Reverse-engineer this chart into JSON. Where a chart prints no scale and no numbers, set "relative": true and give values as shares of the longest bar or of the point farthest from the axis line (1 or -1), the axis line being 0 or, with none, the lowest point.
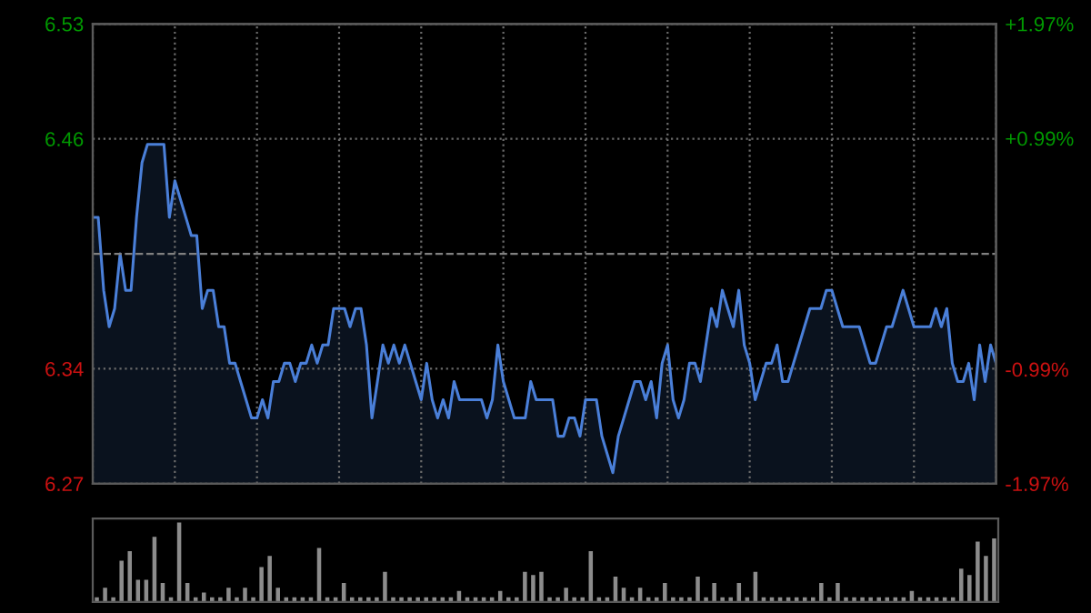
{
  "chart_data": [
    {
      "type": "area",
      "categories": [
        null,
        null,
        null,
        null,
        null,
        null,
        null,
        null,
        null,
        null,
        null,
        null,
        null,
        null,
        null,
        null,
        null,
        null,
        null,
        null,
        null,
        null,
        null,
        null,
        null,
        null,
        null,
        null,
        null,
        null,
        null,
        null,
        null,
        null,
        null,
        null,
        null,
        null,
        null,
        null,
        null,
        null,
        null,
        null,
        null,
        null,
        null,
        null,
        null,
        null,
        null,
        null,
        null,
        null,
        null,
        null,
        null,
        null,
        null,
        null,
        null,
        null,
        null,
        null,
        null,
        null,
        null,
        null,
        null,
        null,
        null,
        null,
        null,
        null,
        null,
        null,
        null,
        null,
        null,
        null,
        null,
        null,
        null,
        null,
        null,
        null,
        null,
        null,
        null,
        null,
        null,
        null,
        null,
        null,
        null,
        null,
        null,
        null,
        null,
        null,
        null,
        null,
        null,
        null,
        null,
        null,
        null,
        null,
        null,
        null,
        null,
        null,
        null,
        null,
        null,
        null,
        null,
        null,
        null,
        null,
        null,
        null,
        null,
        null,
        null,
        null,
        null,
        null,
        null,
        null,
        null,
        null,
        null,
        null,
        null,
        null,
        null,
        null,
        null,
        null,
        null,
        null,
        null,
        null,
        null,
        null,
        null,
        null,
        null,
        null,
        null,
        null,
        null,
        null,
        null,
        null,
        null,
        null,
        null,
        null,
        null,
        null,
        null,
        null,
        null,
        null
      ],
      "ylim": [
        6.274,
        6.526
      ],
      "yticks": [
        {
          "value": 6.274,
          "label": "6.27"
        },
        {
          "value": 6.337,
          "label": "6.34"
        },
        {
          "value": 6.463,
          "label": "6.46"
        },
        {
          "value": 6.526,
          "label": "6.53"
        }
      ],
      "y2lim": [
        -1.97,
        1.97
      ],
      "y2ticks": [
        {
          "value": -1.97,
          "label": "-1.97%"
        },
        {
          "value": -0.99,
          "label": "-0.99%"
        },
        {
          "value": 0.99,
          "label": "+0.99%"
        },
        {
          "value": 1.97,
          "label": "+1.97%"
        }
      ],
      "grid": true,
      "ref_lines": [
        {
          "axis": "y",
          "value": 6.4,
          "label": null,
          "line_style": "dashed",
          "color": "#808080"
        }
      ],
      "series": [
        {
          "color": "#4a7fd8",
          "values": [
            6.42,
            6.42,
            6.38,
            6.36,
            6.37,
            6.4,
            6.38,
            6.38,
            6.42,
            6.45,
            6.46,
            6.46,
            6.46,
            6.46,
            6.42,
            6.44,
            6.43,
            6.42,
            6.41,
            6.41,
            6.37,
            6.38,
            6.38,
            6.36,
            6.36,
            6.34,
            6.34,
            6.33,
            6.32,
            6.31,
            6.31,
            6.32,
            6.31,
            6.33,
            6.33,
            6.34,
            6.34,
            6.33,
            6.34,
            6.34,
            6.35,
            6.34,
            6.35,
            6.35,
            6.37,
            6.37,
            6.37,
            6.36,
            6.37,
            6.37,
            6.35,
            6.31,
            6.33,
            6.35,
            6.34,
            6.35,
            6.34,
            6.35,
            6.34,
            6.33,
            6.32,
            6.34,
            6.32,
            6.31,
            6.32,
            6.31,
            6.33,
            6.32,
            6.32,
            6.32,
            6.32,
            6.32,
            6.31,
            6.32,
            6.35,
            6.33,
            6.32,
            6.31,
            6.31,
            6.31,
            6.33,
            6.32,
            6.32,
            6.32,
            6.32,
            6.3,
            6.3,
            6.31,
            6.31,
            6.3,
            6.32,
            6.32,
            6.32,
            6.3,
            6.29,
            6.28,
            6.3,
            6.31,
            6.32,
            6.33,
            6.33,
            6.32,
            6.33,
            6.31,
            6.34,
            6.35,
            6.32,
            6.31,
            6.32,
            6.34,
            6.34,
            6.33,
            6.35,
            6.37,
            6.36,
            6.38,
            6.37,
            6.36,
            6.38,
            6.35,
            6.34,
            6.32,
            6.33,
            6.34,
            6.34,
            6.35,
            6.33,
            6.33,
            6.34,
            6.35,
            6.36,
            6.37,
            6.37,
            6.37,
            6.38,
            6.38,
            6.37,
            6.36,
            6.36,
            6.36,
            6.36,
            6.35,
            6.34,
            6.34,
            6.35,
            6.36,
            6.36,
            6.37,
            6.38,
            6.37,
            6.36,
            6.36,
            6.36,
            6.36,
            6.37,
            6.36,
            6.37,
            6.34,
            6.33,
            6.33,
            6.34,
            6.32,
            6.35,
            6.33,
            6.35,
            6.34
          ]
        }
      ]
    },
    {
      "type": "bar",
      "relative": true,
      "categories": [
        null,
        null,
        null,
        null,
        null,
        null,
        null,
        null,
        null,
        null,
        null,
        null,
        null,
        null,
        null,
        null,
        null,
        null,
        null,
        null,
        null,
        null,
        null,
        null,
        null,
        null,
        null,
        null,
        null,
        null,
        null,
        null,
        null,
        null,
        null,
        null,
        null,
        null,
        null,
        null,
        null,
        null,
        null,
        null,
        null,
        null,
        null,
        null,
        null,
        null,
        null,
        null,
        null,
        null,
        null,
        null,
        null,
        null,
        null,
        null,
        null,
        null,
        null,
        null,
        null,
        null,
        null,
        null,
        null,
        null,
        null,
        null,
        null,
        null,
        null,
        null,
        null,
        null,
        null,
        null,
        null,
        null,
        null,
        null,
        null,
        null,
        null,
        null,
        null,
        null,
        null,
        null,
        null,
        null,
        null,
        null,
        null,
        null,
        null,
        null,
        null,
        null,
        null,
        null,
        null,
        null,
        null,
        null,
        null,
        null
      ],
      "series": [
        {
          "color": "#8c8c8c",
          "values": [
            0.06,
            0.18,
            0.06,
            0.52,
            0.64,
            0.28,
            0.28,
            0.82,
            0.24,
            0.06,
            1.0,
            0.24,
            0.06,
            0.12,
            0.06,
            0.06,
            0.18,
            0.06,
            0.18,
            0.06,
            0.44,
            0.58,
            0.18,
            0.06,
            0.06,
            0.06,
            0.06,
            0.68,
            0.06,
            0.06,
            0.24,
            0.06,
            0.06,
            0.06,
            0.06,
            0.38,
            0.06,
            0.06,
            0.06,
            0.06,
            0.06,
            0.06,
            0.06,
            0.06,
            0.14,
            0.06,
            0.06,
            0.06,
            0.06,
            0.14,
            0.06,
            0.06,
            0.38,
            0.34,
            0.38,
            0.06,
            0.06,
            0.18,
            0.06,
            0.06,
            0.64,
            0.06,
            0.06,
            0.32,
            0.18,
            0.06,
            0.18,
            0.06,
            0.06,
            0.24,
            0.06,
            0.06,
            0.06,
            0.32,
            0.06,
            0.24,
            0.06,
            0.06,
            0.24,
            0.06,
            0.38,
            0.06,
            0.06,
            0.06,
            0.06,
            0.06,
            0.06,
            0.06,
            0.24,
            0.06,
            0.24,
            0.06,
            0.06,
            0.06,
            0.06,
            0.06,
            0.06,
            0.06,
            0.06,
            0.14,
            0.06,
            0.06,
            0.06,
            0.06,
            0.06,
            0.42,
            0.34,
            0.76,
            0.58,
            0.8
          ]
        }
      ]
    }
  ]
}
